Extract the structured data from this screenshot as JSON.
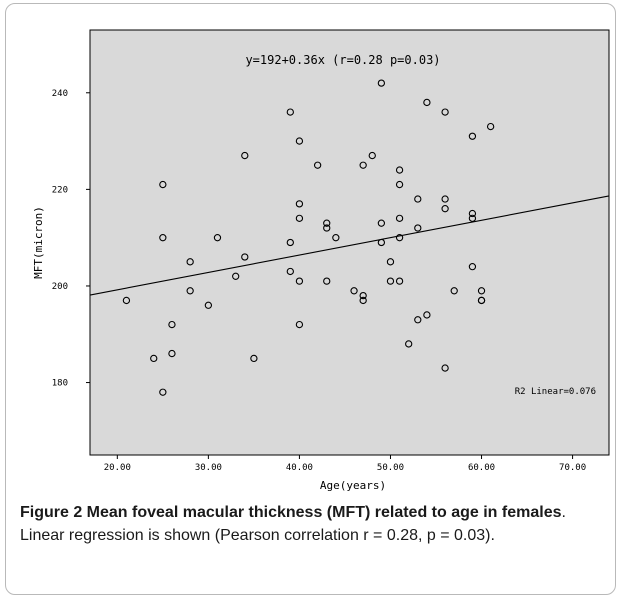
{
  "chart_data": {
    "type": "scatter",
    "title": "",
    "equation_label": "y=192+0.36x (r=0.28 p=0.03)",
    "r2_label": "R2 Linear=0.076",
    "xlabel": "Age(years)",
    "ylabel": "MFT(micron)",
    "xlim": [
      17,
      74
    ],
    "ylim": [
      165,
      253
    ],
    "x_ticks": [
      20,
      30,
      40,
      50,
      60,
      70
    ],
    "x_tick_labels": [
      "20.00",
      "30.00",
      "40.00",
      "50.00",
      "60.00",
      "70.00"
    ],
    "y_ticks": [
      180,
      200,
      220,
      240
    ],
    "y_tick_labels": [
      "180",
      "200",
      "220",
      "240"
    ],
    "grid": false,
    "regression": {
      "intercept": 192,
      "slope": 0.36
    },
    "points": [
      [
        21,
        197
      ],
      [
        24,
        185
      ],
      [
        25,
        178
      ],
      [
        25,
        210
      ],
      [
        25,
        221
      ],
      [
        26,
        192
      ],
      [
        26,
        186
      ],
      [
        28,
        205
      ],
      [
        28,
        199
      ],
      [
        30,
        196
      ],
      [
        31,
        210
      ],
      [
        33,
        202
      ],
      [
        34,
        206
      ],
      [
        34,
        227
      ],
      [
        35,
        185
      ],
      [
        39,
        236
      ],
      [
        39,
        209
      ],
      [
        39,
        203
      ],
      [
        40,
        230
      ],
      [
        40,
        217
      ],
      [
        40,
        214
      ],
      [
        40,
        201
      ],
      [
        40,
        192
      ],
      [
        42,
        225
      ],
      [
        43,
        213
      ],
      [
        43,
        212
      ],
      [
        43,
        201
      ],
      [
        44,
        210
      ],
      [
        46,
        199
      ],
      [
        47,
        225
      ],
      [
        47,
        198
      ],
      [
        47,
        197
      ],
      [
        48,
        227
      ],
      [
        49,
        242
      ],
      [
        49,
        213
      ],
      [
        49,
        209
      ],
      [
        50,
        205
      ],
      [
        50,
        201
      ],
      [
        51,
        224
      ],
      [
        51,
        221
      ],
      [
        51,
        214
      ],
      [
        51,
        210
      ],
      [
        51,
        201
      ],
      [
        52,
        188
      ],
      [
        53,
        218
      ],
      [
        53,
        212
      ],
      [
        53,
        193
      ],
      [
        54,
        238
      ],
      [
        54,
        194
      ],
      [
        56,
        236
      ],
      [
        56,
        218
      ],
      [
        56,
        216
      ],
      [
        56,
        183
      ],
      [
        57,
        199
      ],
      [
        59,
        231
      ],
      [
        59,
        215
      ],
      [
        59,
        214
      ],
      [
        59,
        204
      ],
      [
        60,
        199
      ],
      [
        60,
        197
      ],
      [
        60,
        197
      ],
      [
        61,
        233
      ]
    ]
  },
  "caption": {
    "label": "Figure 2",
    "bold_text": " Mean foveal macular thickness (MFT) related to age in females",
    "rest": ". Linear regression is shown (Pearson correlation r = 0.28, p = 0.03)."
  },
  "colors": {
    "plot_bg": "#d9d9d9",
    "axis": "#000000",
    "frame": "#b9b9b9"
  }
}
